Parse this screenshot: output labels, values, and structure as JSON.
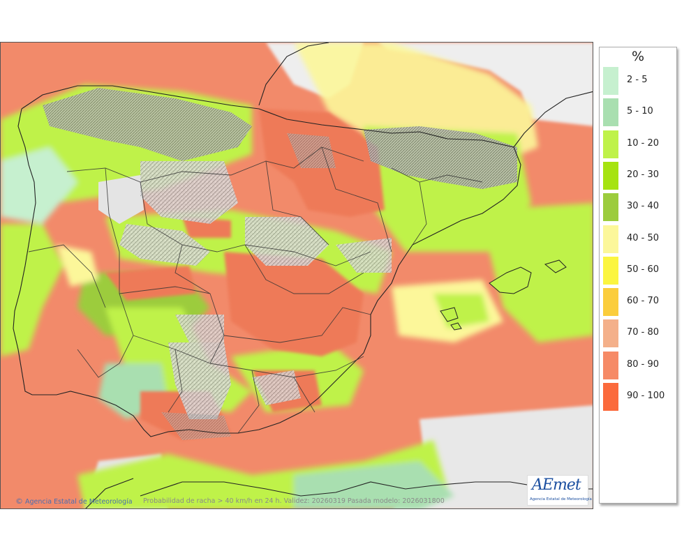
{
  "map": {
    "type": "probability-map",
    "region": "Península Ibérica y Baleares",
    "colors": {
      "sea_base": "#f28a6a",
      "sea_high": "#ee7a58",
      "land_relief": "#d4d4d4",
      "no_data": "#eeeeee",
      "borders": "#222222"
    }
  },
  "legend": {
    "unit": "%",
    "items": [
      {
        "label": "2 - 5",
        "color": "#c6f0cf"
      },
      {
        "label": "5 - 10",
        "color": "#a9dfb0"
      },
      {
        "label": "10 - 20",
        "color": "#bff24a"
      },
      {
        "label": "20 - 30",
        "color": "#a6e311"
      },
      {
        "label": "30 - 40",
        "color": "#9ccc3d"
      },
      {
        "label": "40 - 50",
        "color": "#fcf79a"
      },
      {
        "label": "50 - 60",
        "color": "#fbf540"
      },
      {
        "label": "60 - 70",
        "color": "#fbcd3c"
      },
      {
        "label": "70 - 80",
        "color": "#f4b08a"
      },
      {
        "label": "80 - 90",
        "color": "#f68a66"
      },
      {
        "label": "90 - 100",
        "color": "#fb6a3c"
      }
    ]
  },
  "footer": {
    "copyright_symbol": "©",
    "agency": "Agencia Estatal de Meteorología",
    "caption": "Probabilidad de racha > 40 km/h en 24 h. Validez: 20260319 Pasada modelo: 2026031800"
  },
  "logo": {
    "mark": "AEmet",
    "subtitle": "Agencia Estatal de Meteorología"
  }
}
